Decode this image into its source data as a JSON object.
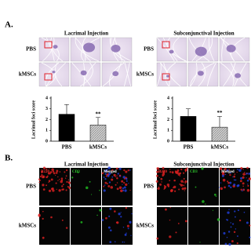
{
  "panel_a": {
    "label": "A.",
    "groups": [
      {
        "title": "Lacrimal Injection",
        "rows": [
          "PBS",
          "kMSCs"
        ]
      },
      {
        "title": "Subconjunctival Injection",
        "rows": [
          "PBS",
          "kMSCs"
        ]
      }
    ]
  },
  "chart_data": [
    {
      "type": "bar",
      "ylabel": "Lacrimal foci score",
      "categories": [
        "PBS",
        "kMSCs"
      ],
      "values": [
        2.5,
        1.5
      ],
      "errors": [
        0.9,
        0.7
      ],
      "annotations": [
        null,
        "**"
      ],
      "colors": [
        "#000000",
        "#cfcfcf"
      ],
      "hatched": [
        false,
        true
      ],
      "ylim": [
        0,
        4
      ],
      "yticks": [
        0,
        1,
        2,
        3,
        4
      ]
    },
    {
      "type": "bar",
      "ylabel": "Lacrimal foci score",
      "categories": [
        "PBS",
        "kMSCs"
      ],
      "values": [
        2.3,
        1.3
      ],
      "errors": [
        0.7,
        1.0
      ],
      "annotations": [
        null,
        "**"
      ],
      "colors": [
        "#000000",
        "#cfcfcf"
      ],
      "hatched": [
        false,
        true
      ],
      "ylim": [
        0,
        4
      ],
      "yticks": [
        0,
        1,
        2,
        3,
        4
      ]
    }
  ],
  "panel_b": {
    "label": "B.",
    "groups": [
      {
        "title": "Lacrimal Injection",
        "channels": [
          "B220",
          "CD3",
          "Merged"
        ],
        "rows": [
          "PBS",
          "kMSCs"
        ]
      },
      {
        "title": "Subconjunctival Injection",
        "channels": [
          "B220",
          "CD3",
          "Merged"
        ],
        "rows": [
          "PBS",
          "kMSCs"
        ]
      }
    ]
  }
}
